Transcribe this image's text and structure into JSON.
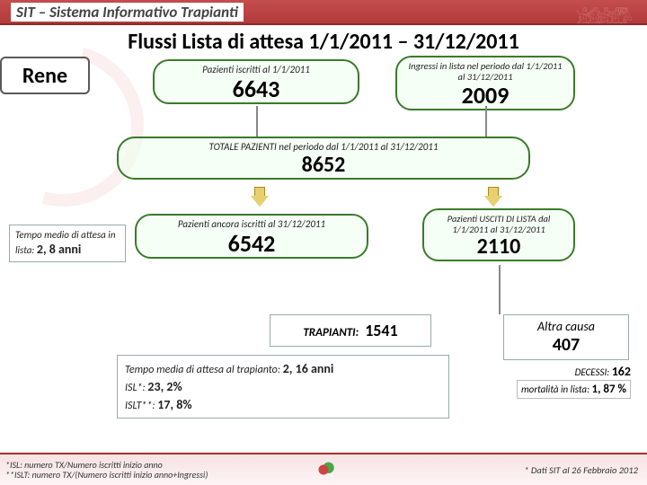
{
  "header": {
    "site": "SIT – Sistema Informativo Trapianti"
  },
  "title": "Flussi Lista di attesa 1/1/2011 – 31/12/2011",
  "organ": "Rene",
  "enrolled_start": {
    "label": "Pazienti iscritti al 1/1/2011",
    "value": "6643"
  },
  "entries_period": {
    "label": "Ingressi in lista nel periodo dal 1/1/2011 al 31/12/2011",
    "value": "2009"
  },
  "total_period": {
    "label": "TOTALE PAZIENTI nel periodo dal 1/1/2011 al 31/12/2011",
    "value": "8652"
  },
  "still_enrolled": {
    "label": "Pazienti ancora iscritti al 31/12/2011",
    "value": "6542"
  },
  "exited": {
    "label": "Pazienti USCITI DI LISTA dal 1/1/2011 al 31/12/2011",
    "value": "2110"
  },
  "avg_wait_list": {
    "label": "Tempo medio di attesa in lista:",
    "value": "2, 8 anni"
  },
  "transplants": {
    "label": "TRAPIANTI:",
    "value": "1541"
  },
  "stats": {
    "avg_wait_tx_label": "Tempo media di attesa al trapianto:",
    "avg_wait_tx_value": "2, 16 anni",
    "isl_label": "ISL*:",
    "isl_value": "23, 2%",
    "islt_label": "ISLT**:",
    "islt_value": "17, 8%"
  },
  "other_cause": {
    "label": "Altra causa",
    "value": "407"
  },
  "deaths": {
    "label": "DECESSI:",
    "value": "162"
  },
  "mortality": {
    "label": "mortalità in lista:",
    "value": "1, 87 %"
  },
  "footer": {
    "note1": "*ISL: numero TX/Numero iscritti inizio anno",
    "note2": "**ISLT: numero TX/(Numero iscritti inizio anno+Ingressi)",
    "source": "* Dati SIT al 26 Febbraio 2012"
  },
  "colors": {
    "accent": "#b33a3a",
    "pill_border": "#3a7a2a",
    "box_border": "#99aaaa"
  }
}
